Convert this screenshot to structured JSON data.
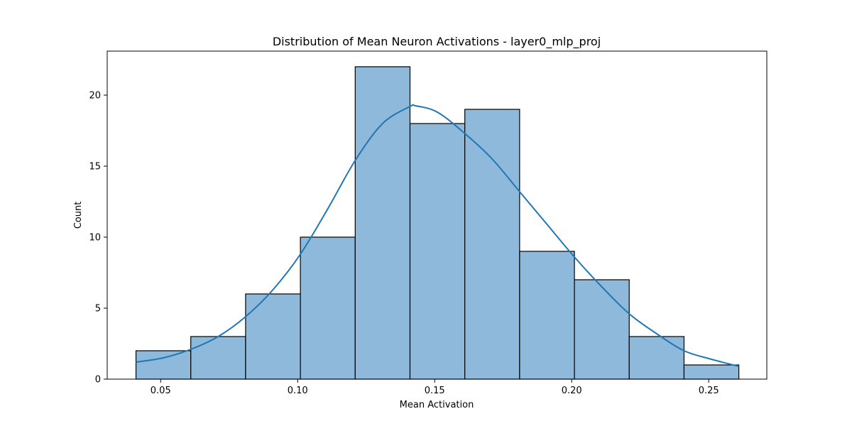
{
  "chart_data": {
    "type": "bar",
    "title": "Distribution of Mean Neuron Activations - layer0_mlp_proj",
    "xlabel": "Mean Activation",
    "ylabel": "Count",
    "xlim": [
      0.0305,
      0.2712
    ],
    "ylim": [
      0,
      23.1
    ],
    "x_ticks": [
      0.05,
      0.1,
      0.15,
      0.2,
      0.25
    ],
    "x_tick_labels": [
      "0.05",
      "0.10",
      "0.15",
      "0.20",
      "0.25"
    ],
    "y_ticks": [
      0,
      5,
      10,
      15,
      20
    ],
    "y_tick_labels": [
      "0",
      "5",
      "10",
      "15",
      "20"
    ],
    "bin_edges": [
      0.041,
      0.061,
      0.081,
      0.101,
      0.121,
      0.141,
      0.161,
      0.181,
      0.201,
      0.221,
      0.241,
      0.261
    ],
    "counts": [
      2,
      3,
      6,
      10,
      22,
      18,
      19,
      9,
      7,
      3,
      1
    ],
    "kde": {
      "x": [
        0.041,
        0.051,
        0.061,
        0.071,
        0.081,
        0.091,
        0.101,
        0.111,
        0.121,
        0.131,
        0.141,
        0.143,
        0.151,
        0.161,
        0.171,
        0.181,
        0.191,
        0.201,
        0.211,
        0.221,
        0.231,
        0.241,
        0.251,
        0.261
      ],
      "y": [
        1.2,
        1.5,
        2.1,
        3.0,
        4.4,
        6.3,
        8.8,
        12.0,
        15.4,
        18.0,
        19.2,
        19.25,
        18.8,
        17.3,
        15.5,
        13.2,
        10.9,
        8.6,
        6.5,
        4.6,
        3.2,
        2.0,
        1.4,
        0.9
      ]
    },
    "grid": false,
    "colors": {
      "bar_fill": "#8fb9da",
      "bar_edge": "#000000",
      "kde_line": "#1f77b4"
    }
  }
}
